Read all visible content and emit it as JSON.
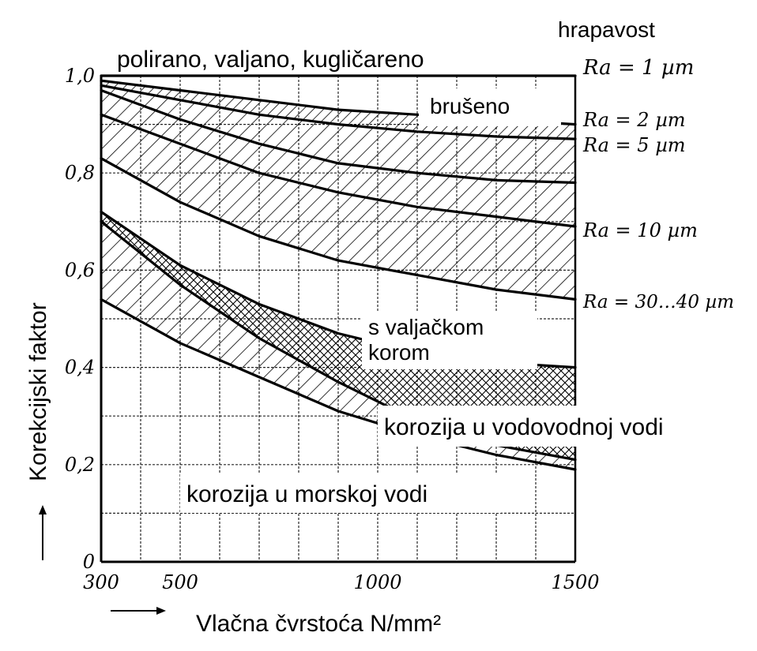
{
  "chart_data": {
    "type": "line",
    "title": "",
    "xlabel": "Vlačna čvrstoća N/mm²",
    "ylabel": "Korekcijski faktor",
    "xlim": [
      300,
      1500
    ],
    "ylim": [
      0,
      1.0
    ],
    "x_ticks": [
      "300",
      "500",
      "1000",
      "1500"
    ],
    "y_ticks": [
      "0",
      "0,2",
      "0,4",
      "0,6",
      "0,8",
      "1,0"
    ],
    "grid": true,
    "roughness_header": "hrapavost",
    "series": [
      {
        "name": "polirano, valjano, kugličareno",
        "x": [
          300,
          1500
        ],
        "y": [
          1.0,
          1.0
        ]
      },
      {
        "name": "Ra = 1 µm",
        "x": [
          300,
          500,
          700,
          900,
          1100,
          1300,
          1500
        ],
        "y": [
          0.99,
          0.97,
          0.95,
          0.93,
          0.92,
          0.91,
          0.9
        ]
      },
      {
        "name": "Ra = 2 µm",
        "x": [
          300,
          500,
          700,
          900,
          1100,
          1300,
          1500
        ],
        "y": [
          0.98,
          0.95,
          0.92,
          0.9,
          0.885,
          0.875,
          0.87
        ]
      },
      {
        "name": "Ra = 5 µm",
        "x": [
          300,
          500,
          700,
          900,
          1100,
          1300,
          1500
        ],
        "y": [
          0.97,
          0.91,
          0.86,
          0.82,
          0.8,
          0.785,
          0.78
        ]
      },
      {
        "name": "Ra = 10 µm",
        "x": [
          300,
          500,
          700,
          900,
          1100,
          1300,
          1500
        ],
        "y": [
          0.92,
          0.86,
          0.8,
          0.76,
          0.73,
          0.71,
          0.69
        ]
      },
      {
        "name": "Ra = 30...40 µm",
        "x": [
          300,
          500,
          700,
          900,
          1100,
          1300,
          1500
        ],
        "y": [
          0.83,
          0.74,
          0.67,
          0.62,
          0.59,
          0.56,
          0.54
        ]
      },
      {
        "name": "s valjačkom korom",
        "x": [
          300,
          500,
          700,
          900,
          1100,
          1300,
          1500
        ],
        "y": [
          0.72,
          0.61,
          0.53,
          0.47,
          0.43,
          0.41,
          0.4
        ]
      },
      {
        "name": "korozija u vodovodnoj vodi",
        "x": [
          300,
          500,
          700,
          900,
          1100,
          1300,
          1500
        ],
        "y": [
          0.7,
          0.57,
          0.46,
          0.37,
          0.29,
          0.24,
          0.21
        ]
      },
      {
        "name": "korozija u morskoj vodi",
        "x": [
          300,
          500,
          700,
          900,
          1100,
          1300,
          1500
        ],
        "y": [
          0.54,
          0.45,
          0.38,
          0.31,
          0.26,
          0.22,
          0.19
        ]
      }
    ],
    "annotations": {
      "polished": "polirano, valjano, kugličareno",
      "ground": "brušeno",
      "scale": "s valjačkom korom",
      "tap_water": "korozija u vodovodnoj vodi",
      "sea_water": "korozija u morskoj vodi"
    },
    "right_labels": [
      "Ra = 1 µm",
      "Ra = 2 µm",
      "Ra = 5 µm",
      "Ra = 10 µm",
      "Ra = 30…40 µm"
    ]
  }
}
